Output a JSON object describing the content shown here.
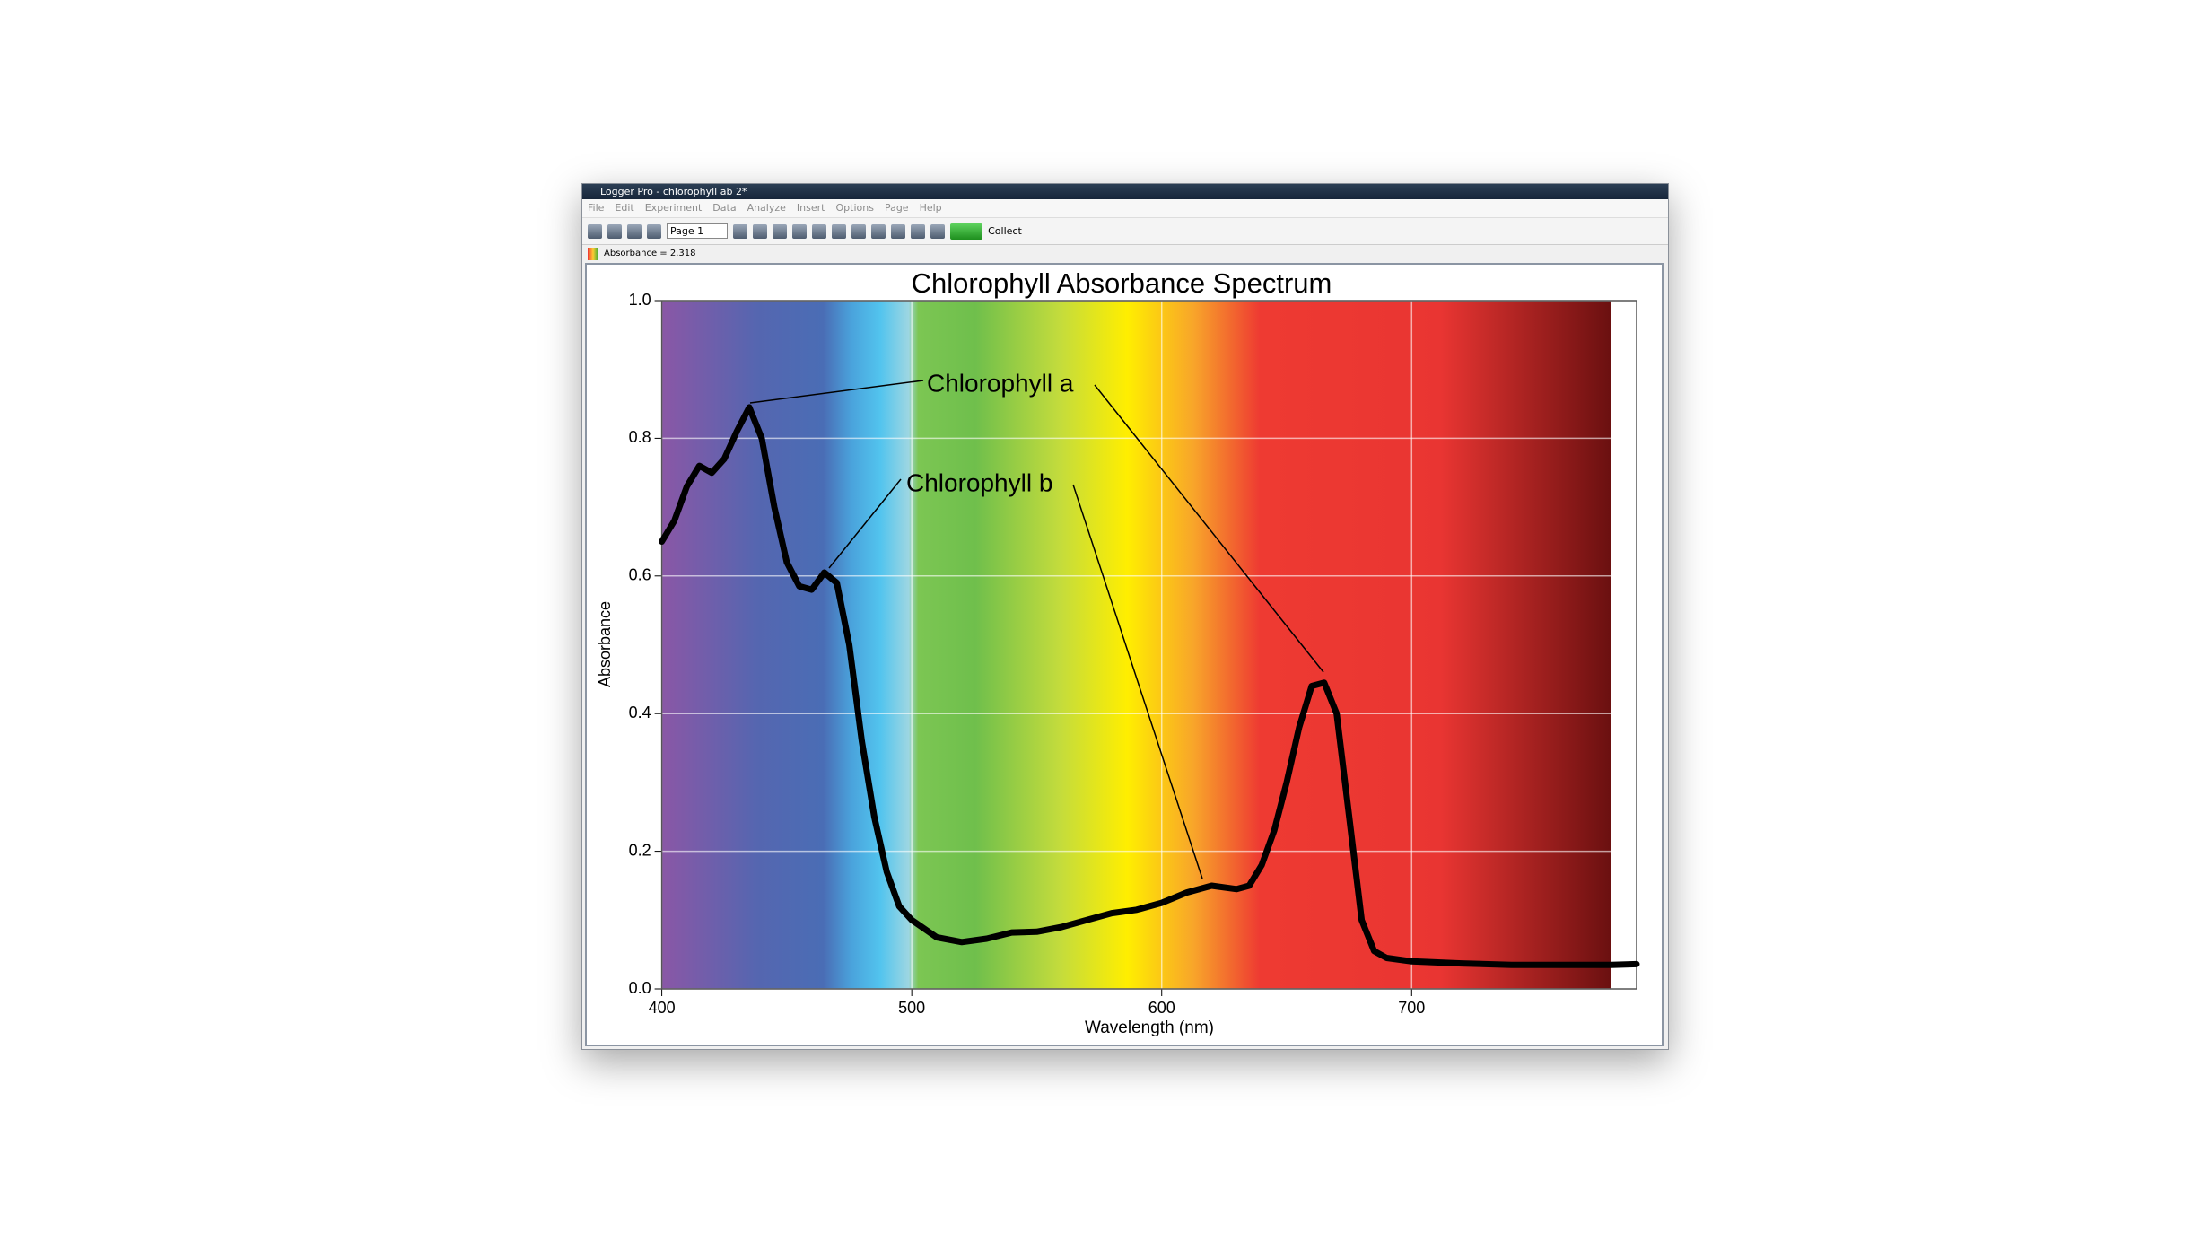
{
  "window": {
    "title": "Logger Pro - chlorophyll ab 2*",
    "menu": [
      "File",
      "Edit",
      "Experiment",
      "Data",
      "Analyze",
      "Insert",
      "Options",
      "Page",
      "Help"
    ],
    "page_select": "Page 1",
    "collect": "Collect",
    "status": "Absorbance = 2.318"
  },
  "chart_data": {
    "type": "line",
    "title": "Chlorophyll Absorbance Spectrum",
    "x_label": "Wavelength (nm)",
    "y_label": "Absorbance",
    "x": [
      400,
      405,
      410,
      415,
      420,
      425,
      430,
      435,
      440,
      445,
      450,
      455,
      460,
      465,
      470,
      475,
      480,
      485,
      490,
      495,
      500,
      510,
      520,
      530,
      540,
      550,
      560,
      570,
      580,
      590,
      600,
      610,
      620,
      630,
      635,
      640,
      645,
      650,
      655,
      660,
      665,
      670,
      675,
      680,
      685,
      690,
      700,
      720,
      740,
      760,
      780,
      790
    ],
    "values": [
      0.65,
      0.68,
      0.73,
      0.76,
      0.75,
      0.77,
      0.81,
      0.845,
      0.8,
      0.7,
      0.62,
      0.585,
      0.58,
      0.605,
      0.59,
      0.5,
      0.36,
      0.25,
      0.17,
      0.12,
      0.1,
      0.075,
      0.068,
      0.073,
      0.082,
      0.083,
      0.09,
      0.1,
      0.11,
      0.115,
      0.125,
      0.14,
      0.15,
      0.145,
      0.15,
      0.18,
      0.23,
      0.3,
      0.38,
      0.44,
      0.445,
      0.4,
      0.25,
      0.1,
      0.055,
      0.045,
      0.04,
      0.037,
      0.035,
      0.035,
      0.035,
      0.036
    ],
    "color": "#000000",
    "xlim": [
      400,
      790
    ],
    "ylim": [
      0,
      1
    ],
    "xticks": [
      400,
      500,
      600,
      700
    ],
    "yticks": [
      {
        "value": 0,
        "label": "0.0"
      },
      0.2,
      0.4,
      0.6,
      0.8,
      {
        "value": 1,
        "label": "1.0"
      }
    ],
    "grid": true,
    "annotations": [
      "Chlorophyll a",
      "Chlorophyll b"
    ]
  }
}
